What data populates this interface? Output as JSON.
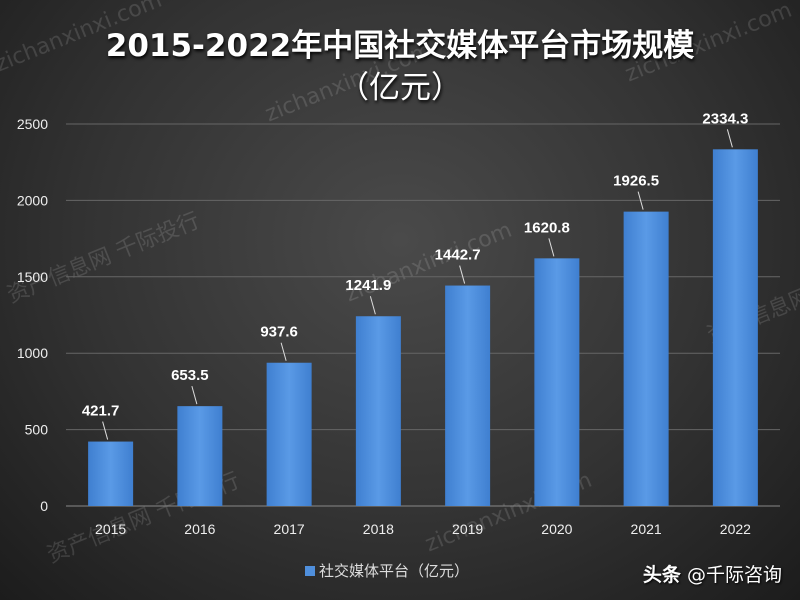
{
  "chart_data": {
    "type": "bar",
    "title": "2015-2022年中国社交媒体平台市场规模",
    "subtitle": "（亿元）",
    "categories": [
      "2015",
      "2016",
      "2017",
      "2018",
      "2019",
      "2020",
      "2021",
      "2022"
    ],
    "series": [
      {
        "name": "社交媒体平台（亿元）",
        "values": [
          421.7,
          653.5,
          937.6,
          1241.9,
          1442.7,
          1620.8,
          1926.5,
          2334.3
        ]
      }
    ],
    "value_labels": [
      "421.7",
      "653.5",
      "937.6",
      "1241.9",
      "1442.7",
      "1620.8",
      "1926.5",
      "2334.3"
    ],
    "ylim": [
      0,
      2500
    ],
    "yticks": [
      0,
      500,
      1000,
      1500,
      2000,
      2500
    ],
    "ytick_labels": [
      "0",
      "500",
      "1000",
      "1500",
      "2000",
      "2500"
    ],
    "xlabel": "",
    "ylabel": "",
    "grid": true,
    "legend": "bottom"
  },
  "legend_label": "社交媒体平台（亿元）",
  "brand": {
    "platform": "头条",
    "account": "@千际咨询"
  },
  "watermarks": [
    "资产信息网 千际投行",
    "zichanxinxi.com"
  ],
  "colors": {
    "bar": "#4f8fdc",
    "grid": "#666666",
    "text": "#ffffff"
  }
}
